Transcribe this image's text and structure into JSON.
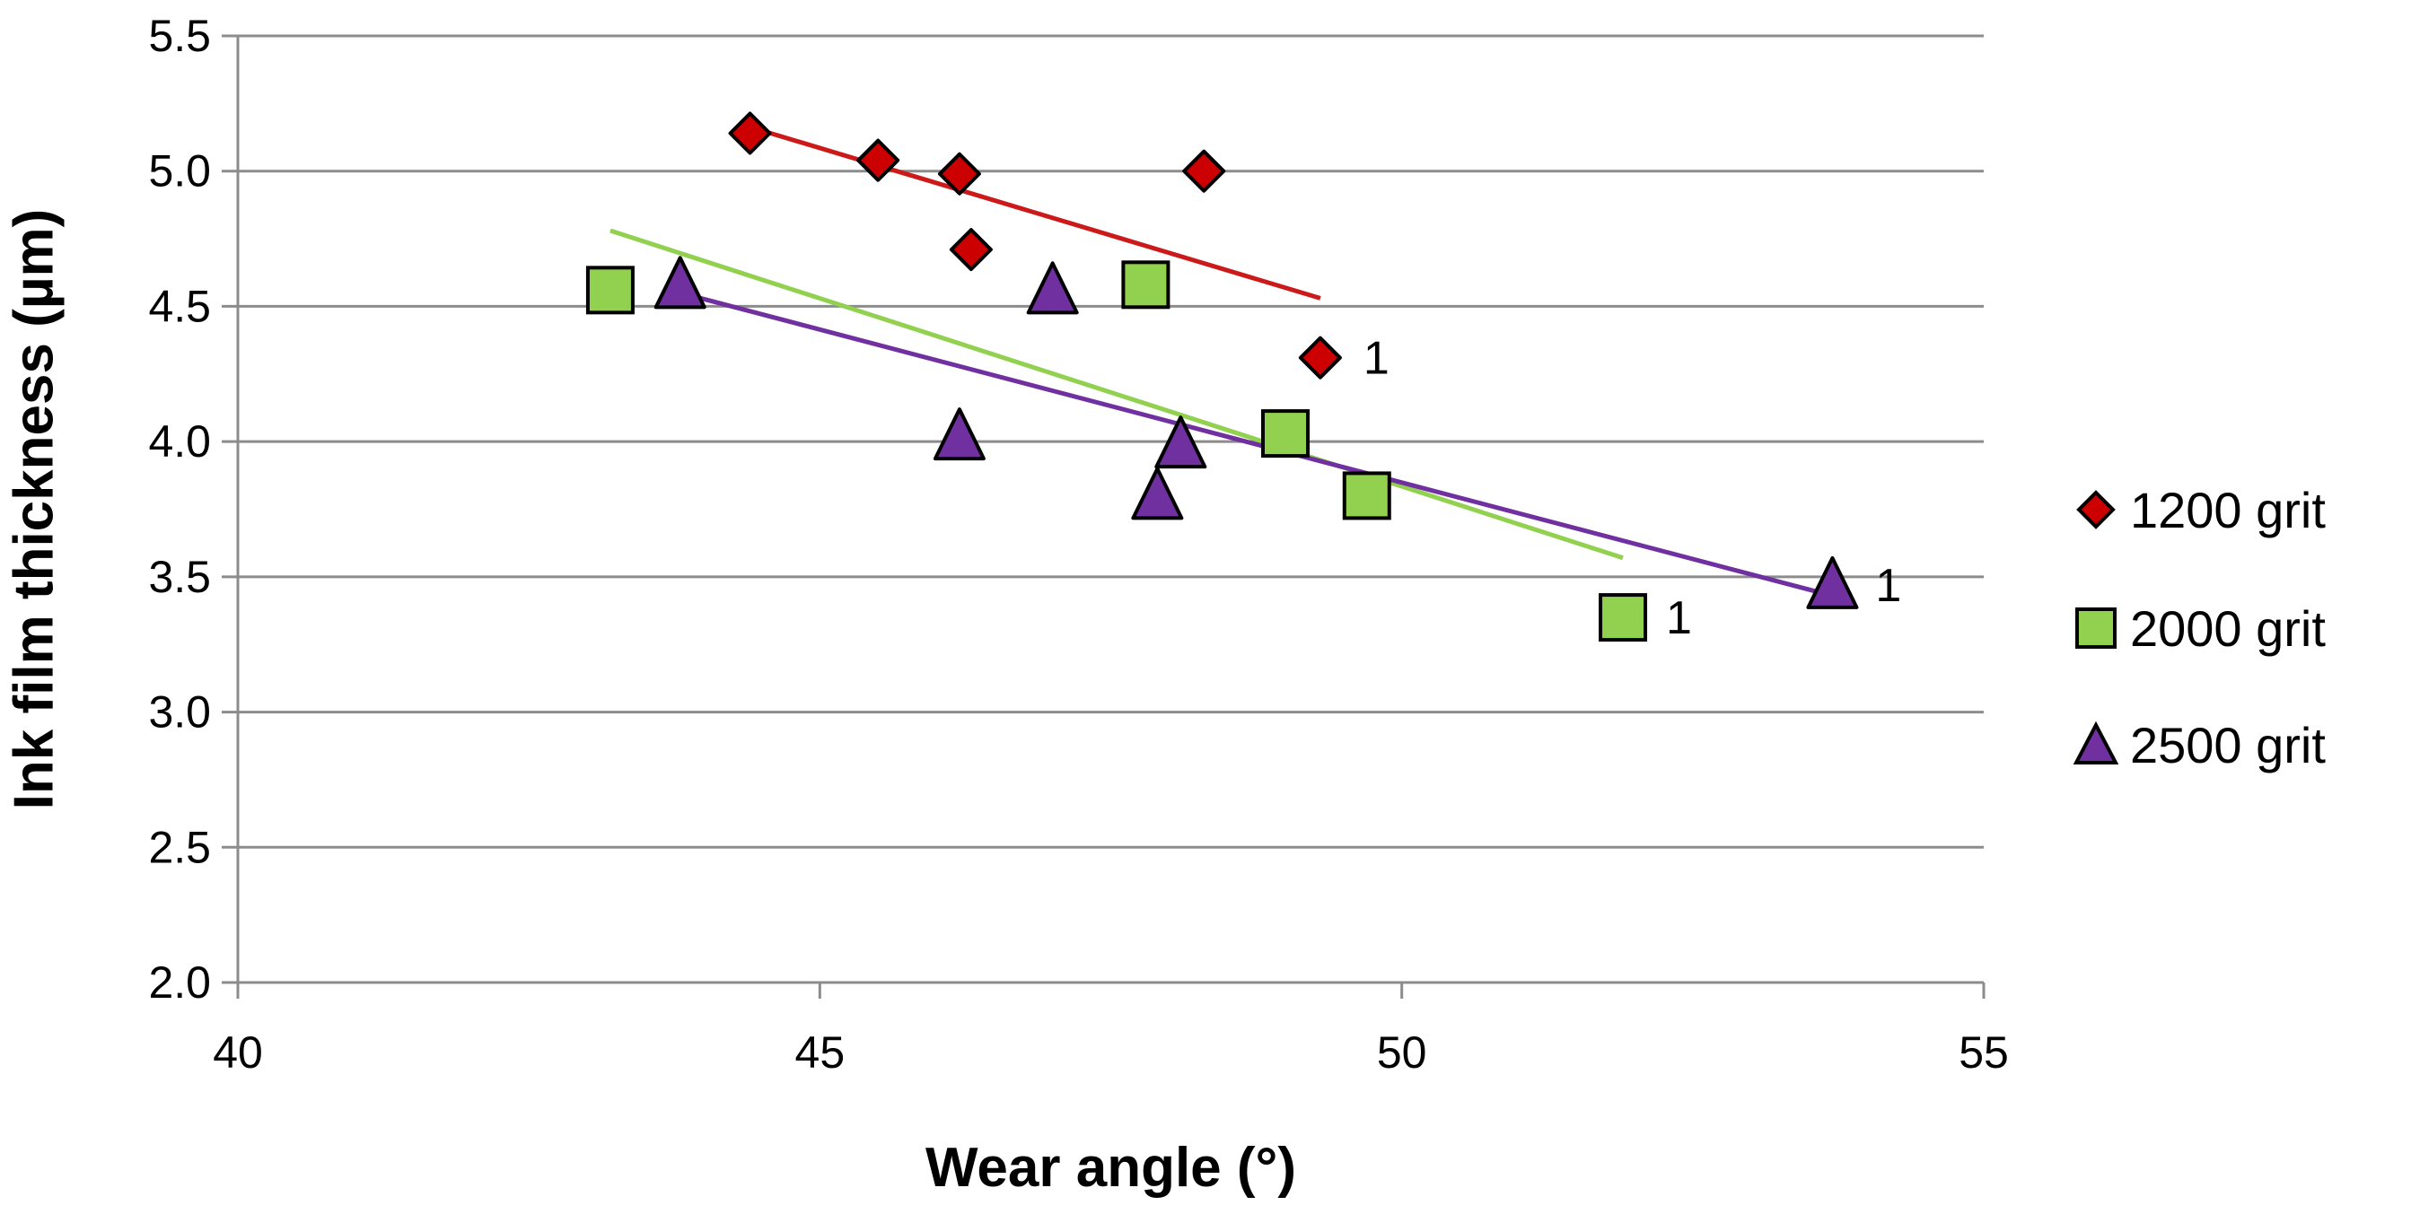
{
  "chart_data": {
    "type": "scatter",
    "title": "",
    "xlabel": "Wear angle (°)",
    "ylabel": "Ink film thickness (µm)",
    "xlim": [
      40,
      55
    ],
    "ylim": [
      2.0,
      5.5
    ],
    "x_ticks": [
      "40",
      "45",
      "50",
      "55"
    ],
    "y_ticks": [
      "2.0",
      "2.5",
      "3.0",
      "3.5",
      "4.0",
      "4.5",
      "5.0",
      "5.5"
    ],
    "grid": "horizontal",
    "legend_position": "right",
    "series": [
      {
        "name": "1200 grit",
        "marker": "diamond",
        "color": "#cc0000",
        "trendline_color": "#cc1a1a",
        "points": [
          {
            "x": 44.4,
            "y": 5.14
          },
          {
            "x": 45.5,
            "y": 5.04
          },
          {
            "x": 46.2,
            "y": 4.99
          },
          {
            "x": 48.3,
            "y": 5.0
          },
          {
            "x": 46.3,
            "y": 4.71
          },
          {
            "x": 49.3,
            "y": 4.31,
            "label": "1"
          }
        ],
        "trendline": {
          "x": [
            44.5,
            49.3
          ],
          "y": [
            5.15,
            4.53
          ]
        }
      },
      {
        "name": "2000 grit",
        "marker": "square",
        "color": "#92d050",
        "trendline_color": "#92d050",
        "points": [
          {
            "x": 43.2,
            "y": 4.56
          },
          {
            "x": 47.8,
            "y": 4.58
          },
          {
            "x": 49.0,
            "y": 4.03
          },
          {
            "x": 49.7,
            "y": 3.8
          },
          {
            "x": 51.9,
            "y": 3.35,
            "label": "1"
          }
        ],
        "trendline": {
          "x": [
            43.2,
            51.9
          ],
          "y": [
            4.78,
            3.57
          ]
        }
      },
      {
        "name": "2500 grit",
        "marker": "triangle",
        "color": "#7030a0",
        "trendline_color": "#7030a0",
        "points": [
          {
            "x": 43.8,
            "y": 4.58
          },
          {
            "x": 47.0,
            "y": 4.56
          },
          {
            "x": 46.2,
            "y": 4.02
          },
          {
            "x": 48.1,
            "y": 3.99
          },
          {
            "x": 47.9,
            "y": 3.8
          },
          {
            "x": 53.7,
            "y": 3.47,
            "label": "1"
          }
        ],
        "trendline": {
          "x": [
            43.8,
            53.7
          ],
          "y": [
            4.55,
            3.43
          ]
        }
      }
    ]
  }
}
